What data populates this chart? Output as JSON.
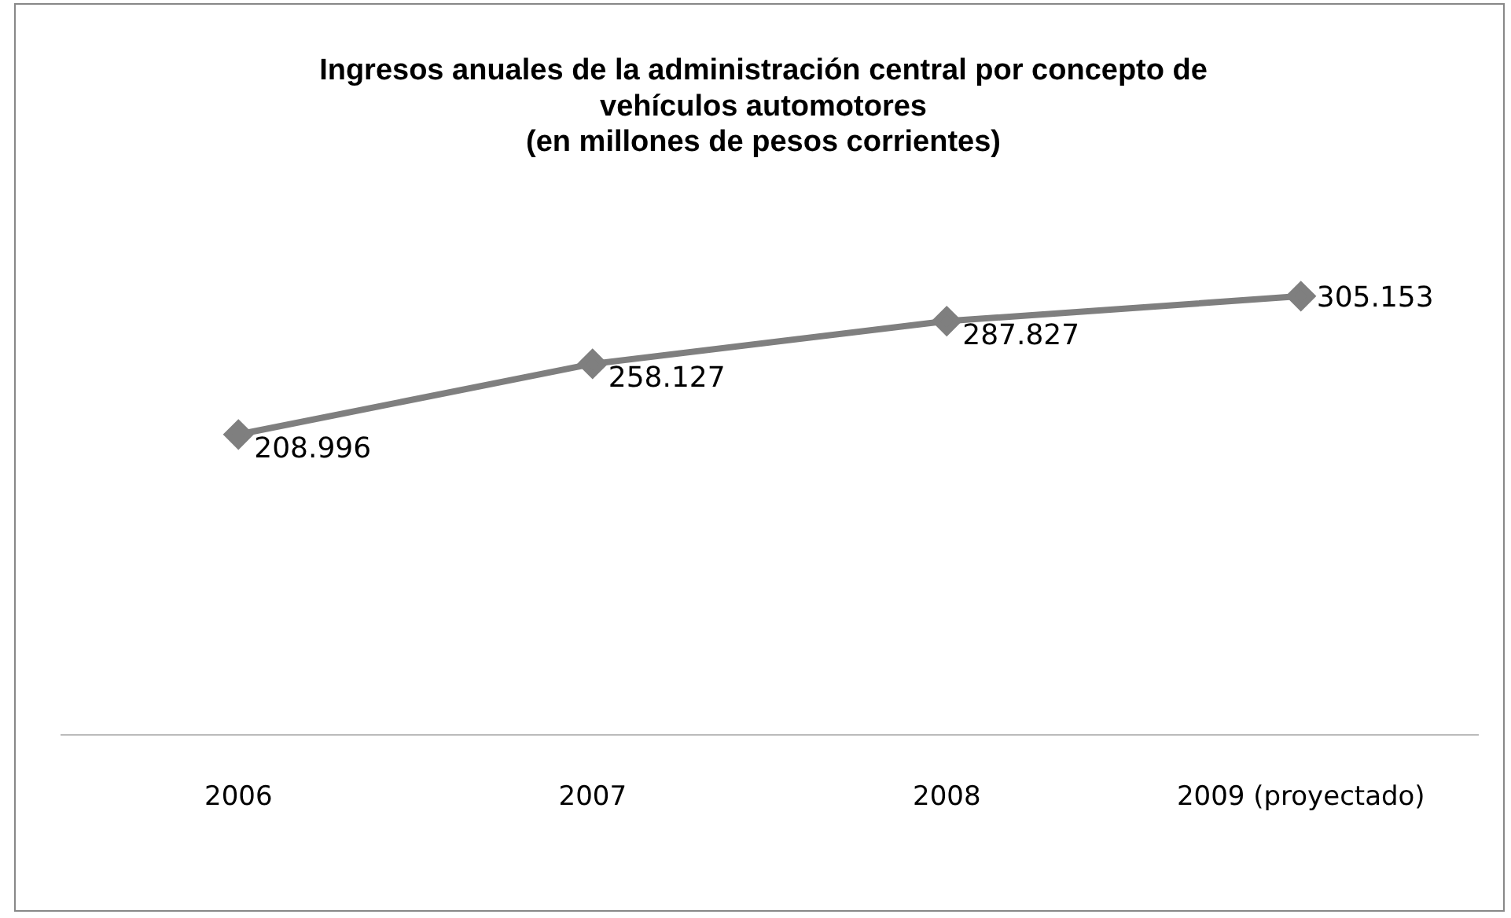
{
  "chart_data": {
    "type": "line",
    "title": "Ingresos anuales de la administración central por concepto de\nvehículos automotores\n(en millones de pesos corrientes)",
    "categories": [
      "2006",
      "2007",
      "2008",
      "2009 (proyectado)"
    ],
    "series": [
      {
        "color": "#7f7f7f",
        "values": [
          208996,
          258127,
          287827,
          305153
        ],
        "value_labels": [
          "208.996",
          "258.127",
          "287.827",
          "305.153"
        ]
      }
    ],
    "tick_labels": "x",
    "grid": false,
    "legend": false,
    "marker": "diamond",
    "line_style": "solid"
  }
}
